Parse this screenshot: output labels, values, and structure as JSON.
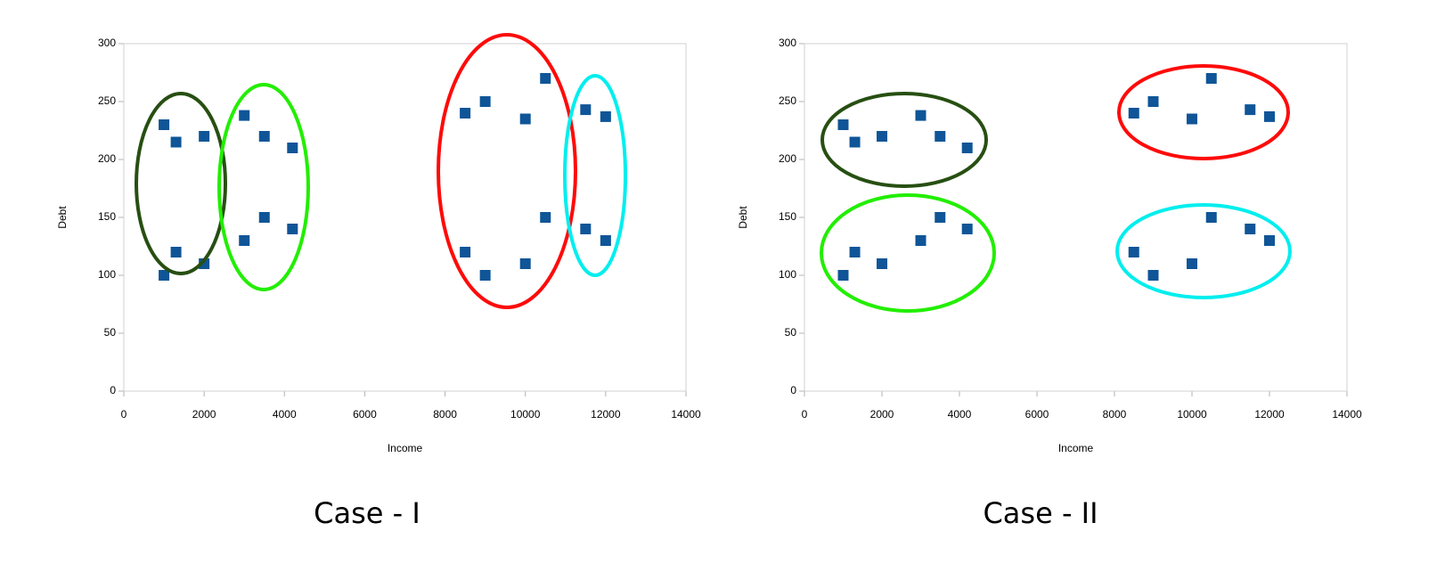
{
  "chart_data": [
    {
      "type": "scatter",
      "x_label": "Income",
      "y_label": "Debt",
      "caption": "Case - I",
      "series": [
        {
          "color": "#0f5597",
          "x": [
            1000,
            1300,
            2000,
            3000,
            3500,
            4200,
            1000,
            1300,
            2000,
            3000,
            3500,
            4200,
            8500,
            9000,
            10000,
            10500,
            11500,
            12000,
            8500,
            9000,
            10000,
            10500,
            11500,
            12000
          ],
          "values": [
            230,
            215,
            220,
            238,
            220,
            210,
            100,
            120,
            110,
            130,
            150,
            140,
            240,
            250,
            235,
            270,
            243,
            237,
            120,
            100,
            110,
            150,
            140,
            130
          ]
        }
      ],
      "xlim": [
        0,
        14000
      ],
      "xticks": [
        0,
        2000,
        4000,
        6000,
        8000,
        10000,
        12000,
        14000
      ],
      "ylim": [
        0,
        300
      ],
      "yticks": [
        0,
        50,
        100,
        150,
        200,
        250,
        300
      ]
    },
    {
      "type": "scatter",
      "x_label": "Income",
      "y_label": "Debt",
      "caption": "Case - II",
      "series": [
        {
          "color": "#0f5597",
          "x": [
            1000,
            1300,
            2000,
            3000,
            3500,
            4200,
            1000,
            1300,
            2000,
            3000,
            3500,
            4200,
            8500,
            9000,
            10000,
            10500,
            11500,
            12000,
            8500,
            9000,
            10000,
            10500,
            11500,
            12000
          ],
          "values": [
            230,
            215,
            220,
            238,
            220,
            210,
            100,
            120,
            110,
            130,
            150,
            140,
            240,
            250,
            235,
            270,
            243,
            237,
            120,
            100,
            110,
            150,
            140,
            130
          ]
        }
      ],
      "xlim": [
        0,
        14000
      ],
      "xticks": [
        0,
        2000,
        4000,
        6000,
        8000,
        10000,
        12000,
        14000
      ],
      "ylim": [
        0,
        300
      ],
      "yticks": [
        0,
        50,
        100,
        150,
        200,
        250,
        300
      ]
    }
  ]
}
